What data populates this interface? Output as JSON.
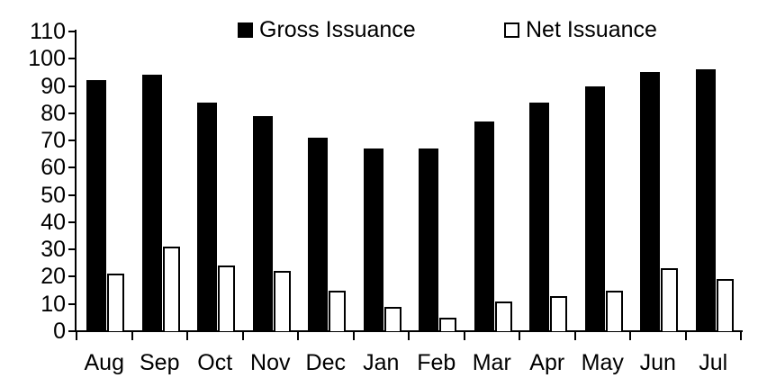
{
  "chart_data": {
    "type": "bar",
    "title": "",
    "xlabel": "",
    "ylabel": "",
    "categories": [
      "Aug",
      "Sep",
      "Oct",
      "Nov",
      "Dec",
      "Jan",
      "Feb",
      "Mar",
      "Apr",
      "May",
      "Jun",
      "Jul"
    ],
    "series": [
      {
        "name": "Gross Issuance",
        "fill": "#000000",
        "values": [
          92,
          94,
          84,
          79,
          71,
          67,
          67,
          77,
          84,
          90,
          95,
          96
        ]
      },
      {
        "name": "Net Issuance",
        "fill": "#ffffff",
        "stroke": "#000000",
        "values": [
          21,
          31,
          24,
          22,
          15,
          9,
          5,
          11,
          13,
          15,
          23,
          19
        ]
      }
    ],
    "ylim": [
      0,
      110
    ],
    "y_ticks": [
      0,
      10,
      20,
      30,
      40,
      50,
      60,
      70,
      80,
      90,
      100,
      110
    ],
    "grid": false,
    "legend_position": "top-center"
  },
  "colors": {
    "background": "#ffffff",
    "axis": "#000000",
    "text": "#000000",
    "gross_bar": "#000000",
    "net_bar_fill": "#ffffff",
    "net_bar_stroke": "#000000"
  }
}
